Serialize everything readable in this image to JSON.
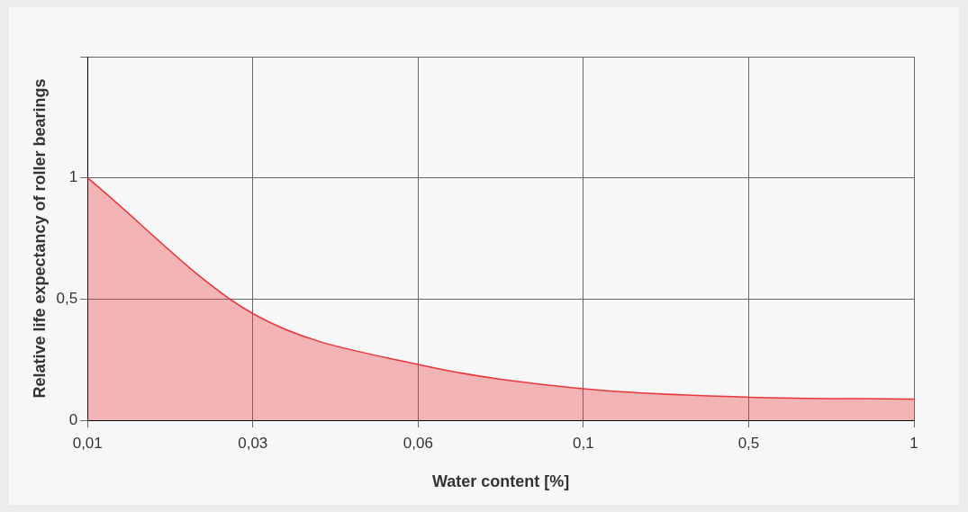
{
  "chart_data": {
    "type": "area",
    "xlabel": "Water content [%]",
    "ylabel": "Relative life expectancy of roller bearings",
    "categories": [
      "0,01",
      "0,03",
      "0,06",
      "0,1",
      "0,5",
      "1"
    ],
    "series": [
      {
        "color": "#e8363a",
        "values": [
          1,
          0.44,
          0.23,
          0.13,
          0.095,
          0.087
        ]
      }
    ],
    "ylim": [
      0,
      1.5
    ],
    "yticks": [
      0,
      {
        "value": 0.5,
        "label": "0,5"
      },
      1,
      {
        "value": 1.5,
        "label": null
      }
    ],
    "grid": true,
    "legend": false
  }
}
